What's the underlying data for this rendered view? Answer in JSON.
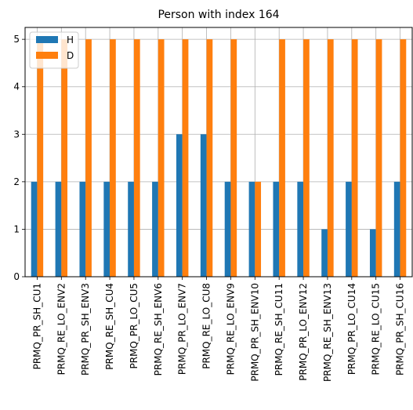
{
  "chart_data": {
    "type": "bar",
    "title": "Person with index 164",
    "xlabel": "",
    "ylabel": "",
    "ylim": [
      0,
      5.25
    ],
    "yticks": [
      0,
      1,
      2,
      3,
      4,
      5
    ],
    "grid": true,
    "legend_position": "top-left",
    "categories": [
      "PRMQ_PR_SH_CU1",
      "PRMQ_RE_LO_ENV2",
      "PRMQ_PR_SH_ENV3",
      "PRMQ_RE_SH_CU4",
      "PRMQ_PR_LO_CU5",
      "PRMQ_RE_SH_ENV6",
      "PRMQ_PR_LO_ENV7",
      "PRMQ_RE_LO_CU8",
      "PRMQ_RE_LO_ENV9",
      "PRMQ_PR_SH_ENV10",
      "PRMQ_RE_SH_CU11",
      "PRMQ_PR_LO_ENV12",
      "PRMQ_RE_SH_ENV13",
      "PRMQ_PR_LO_CU14",
      "PRMQ_RE_LO_CU15",
      "PRMQ_PR_SH_CU16"
    ],
    "series": [
      {
        "name": "H",
        "color": "#1f77b4",
        "values": [
          2,
          2,
          2,
          2,
          2,
          2,
          3,
          3,
          2,
          2,
          2,
          2,
          1,
          2,
          1,
          2
        ]
      },
      {
        "name": "D",
        "color": "#ff7f0e",
        "values": [
          5,
          5,
          5,
          5,
          5,
          5,
          5,
          5,
          5,
          2,
          5,
          5,
          5,
          5,
          5,
          5
        ]
      }
    ]
  }
}
